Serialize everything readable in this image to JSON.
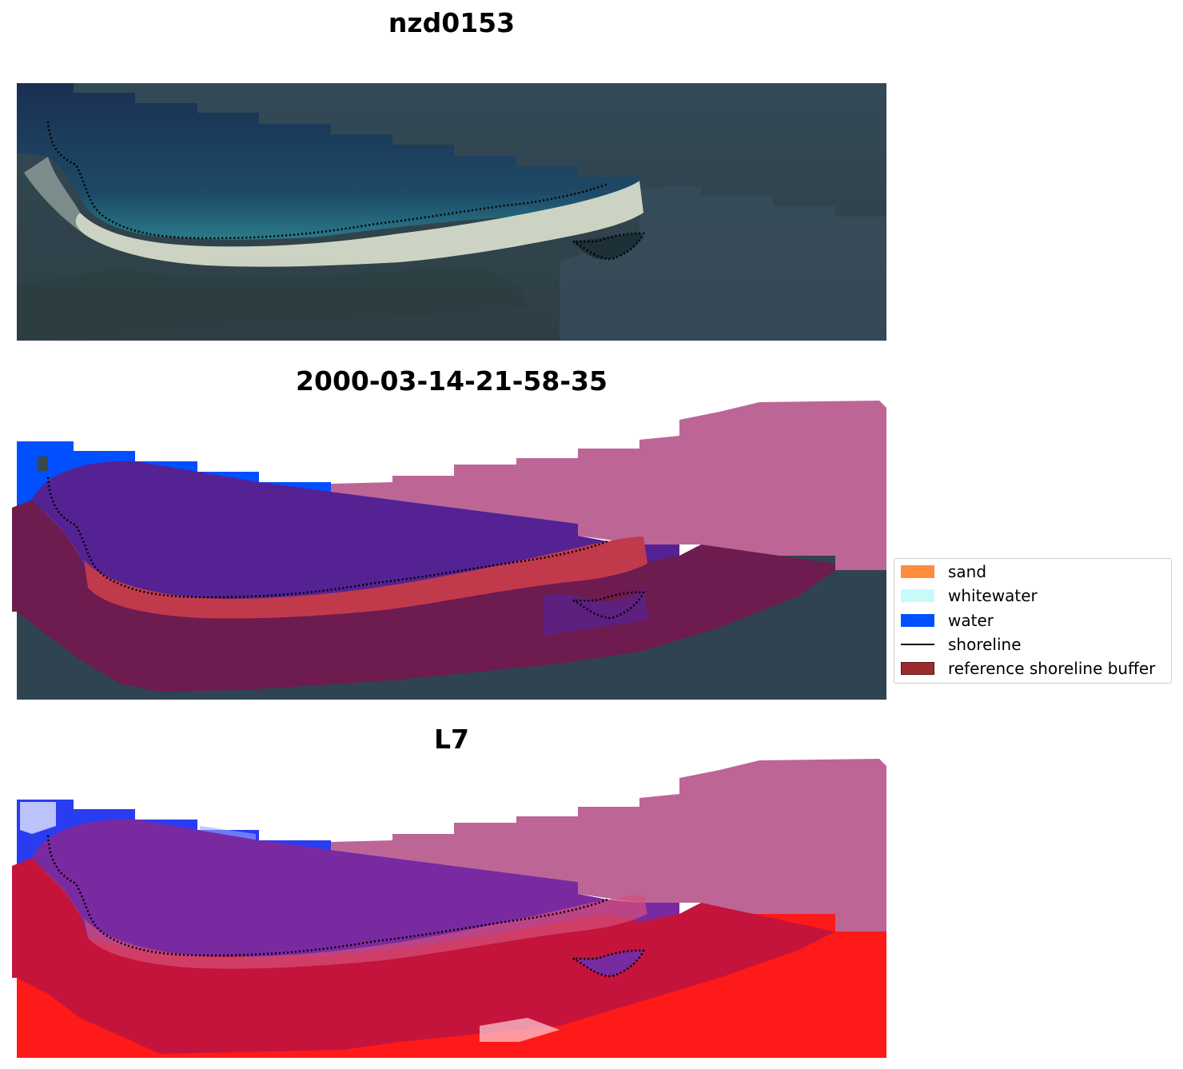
{
  "panels": {
    "top_title": "nzd0153",
    "middle_title": "2000-03-14-21-58-35",
    "bottom_title": "L7"
  },
  "legend": {
    "items": [
      {
        "label": "sand",
        "color": "#ff8c3c"
      },
      {
        "label": "whitewater",
        "color": "#c8fafa"
      },
      {
        "label": "water",
        "color": "#0050ff"
      },
      {
        "label": "shoreline",
        "color": "#000000"
      },
      {
        "label": "reference shoreline buffer",
        "color": "#9b2c2c"
      }
    ]
  }
}
